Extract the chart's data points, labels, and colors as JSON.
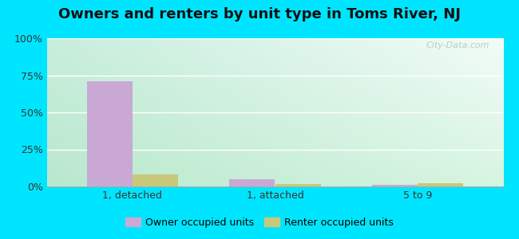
{
  "title": "Owners and renters by unit type in Toms River, NJ",
  "categories": [
    "1, detached",
    "1, attached",
    "5 to 9"
  ],
  "owner_values": [
    71,
    5,
    1
  ],
  "renter_values": [
    8,
    1.5,
    2
  ],
  "owner_color": "#c9a8d4",
  "renter_color": "#c8c87a",
  "ylim": [
    0,
    100
  ],
  "yticks": [
    0,
    25,
    50,
    75,
    100
  ],
  "ytick_labels": [
    "0%",
    "25%",
    "50%",
    "75%",
    "100%"
  ],
  "outer_bg": "#00e5ff",
  "bar_width": 0.32,
  "legend_owner": "Owner occupied units",
  "legend_renter": "Renter occupied units",
  "watermark": "City-Data.com",
  "title_fontsize": 13,
  "axis_fontsize": 9,
  "legend_fontsize": 9,
  "grad_top_left": "#c8eedd",
  "grad_top_right": "#e8f5ee",
  "grad_bottom_left": "#c0eed8",
  "grad_bottom_right": "#ddf5e8"
}
